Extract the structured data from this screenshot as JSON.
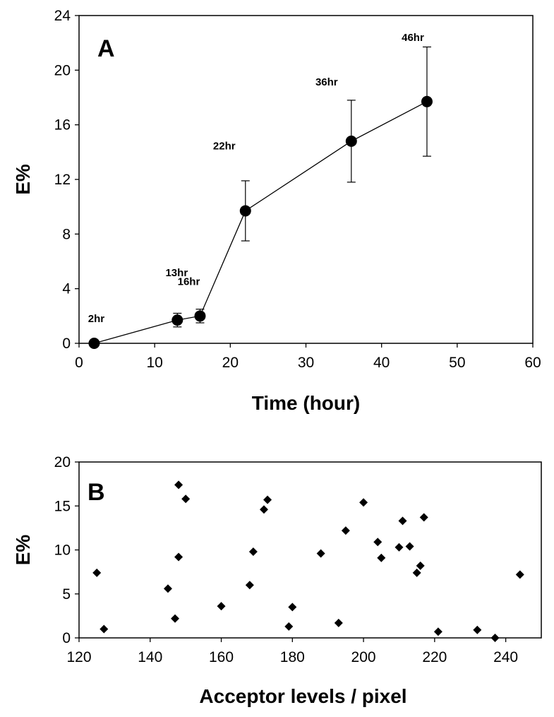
{
  "chart_data": [
    {
      "type": "line",
      "panel_label": "A",
      "xlabel": "Time (hour)",
      "ylabel": "E%",
      "xlim": [
        0,
        60
      ],
      "ylim": [
        0,
        24
      ],
      "xticks": [
        0,
        10,
        20,
        30,
        40,
        50,
        60
      ],
      "yticks": [
        0,
        4,
        8,
        12,
        16,
        20,
        24
      ],
      "grid": false,
      "legend": "none",
      "color": "#000000",
      "series": [
        {
          "points": [
            {
              "x": 2,
              "y": 0,
              "err": 0,
              "label": "2hr"
            },
            {
              "x": 13,
              "y": 1.7,
              "err": 0.5,
              "label": "13hr"
            },
            {
              "x": 16,
              "y": 2.0,
              "err": 0.5,
              "label": "16hr"
            },
            {
              "x": 22,
              "y": 9.7,
              "err": 2.2,
              "label": "22hr"
            },
            {
              "x": 36,
              "y": 14.8,
              "err": 3.0,
              "label": "36hr"
            },
            {
              "x": 46,
              "y": 17.7,
              "err": 4.0,
              "label": "46hr"
            }
          ]
        }
      ]
    },
    {
      "type": "scatter",
      "panel_label": "B",
      "xlabel": "Acceptor levels / pixel",
      "ylabel": "E%",
      "xlim": [
        120,
        250
      ],
      "ylim": [
        0,
        20
      ],
      "xticks": [
        120,
        140,
        160,
        180,
        200,
        220,
        240
      ],
      "yticks": [
        0,
        5,
        10,
        15,
        20
      ],
      "grid": false,
      "legend": "none",
      "marker": "diamond",
      "color": "#000000",
      "series": [
        {
          "points": [
            {
              "x": 125,
              "y": 7.4
            },
            {
              "x": 127,
              "y": 1.0
            },
            {
              "x": 145,
              "y": 5.6
            },
            {
              "x": 147,
              "y": 2.2
            },
            {
              "x": 148,
              "y": 17.4
            },
            {
              "x": 148,
              "y": 9.2
            },
            {
              "x": 150,
              "y": 15.8
            },
            {
              "x": 160,
              "y": 3.6
            },
            {
              "x": 168,
              "y": 6.0
            },
            {
              "x": 169,
              "y": 9.8
            },
            {
              "x": 172,
              "y": 14.6
            },
            {
              "x": 173,
              "y": 15.7
            },
            {
              "x": 179,
              "y": 1.3
            },
            {
              "x": 180,
              "y": 3.5
            },
            {
              "x": 188,
              "y": 9.6
            },
            {
              "x": 193,
              "y": 1.7
            },
            {
              "x": 195,
              "y": 12.2
            },
            {
              "x": 200,
              "y": 15.4
            },
            {
              "x": 204,
              "y": 10.9
            },
            {
              "x": 205,
              "y": 9.1
            },
            {
              "x": 210,
              "y": 10.3
            },
            {
              "x": 211,
              "y": 13.3
            },
            {
              "x": 213,
              "y": 10.4
            },
            {
              "x": 215,
              "y": 7.4
            },
            {
              "x": 216,
              "y": 8.2
            },
            {
              "x": 217,
              "y": 13.7
            },
            {
              "x": 221,
              "y": 0.7
            },
            {
              "x": 232,
              "y": 0.9
            },
            {
              "x": 237,
              "y": 0.0
            },
            {
              "x": 244,
              "y": 7.2
            }
          ]
        }
      ]
    }
  ]
}
